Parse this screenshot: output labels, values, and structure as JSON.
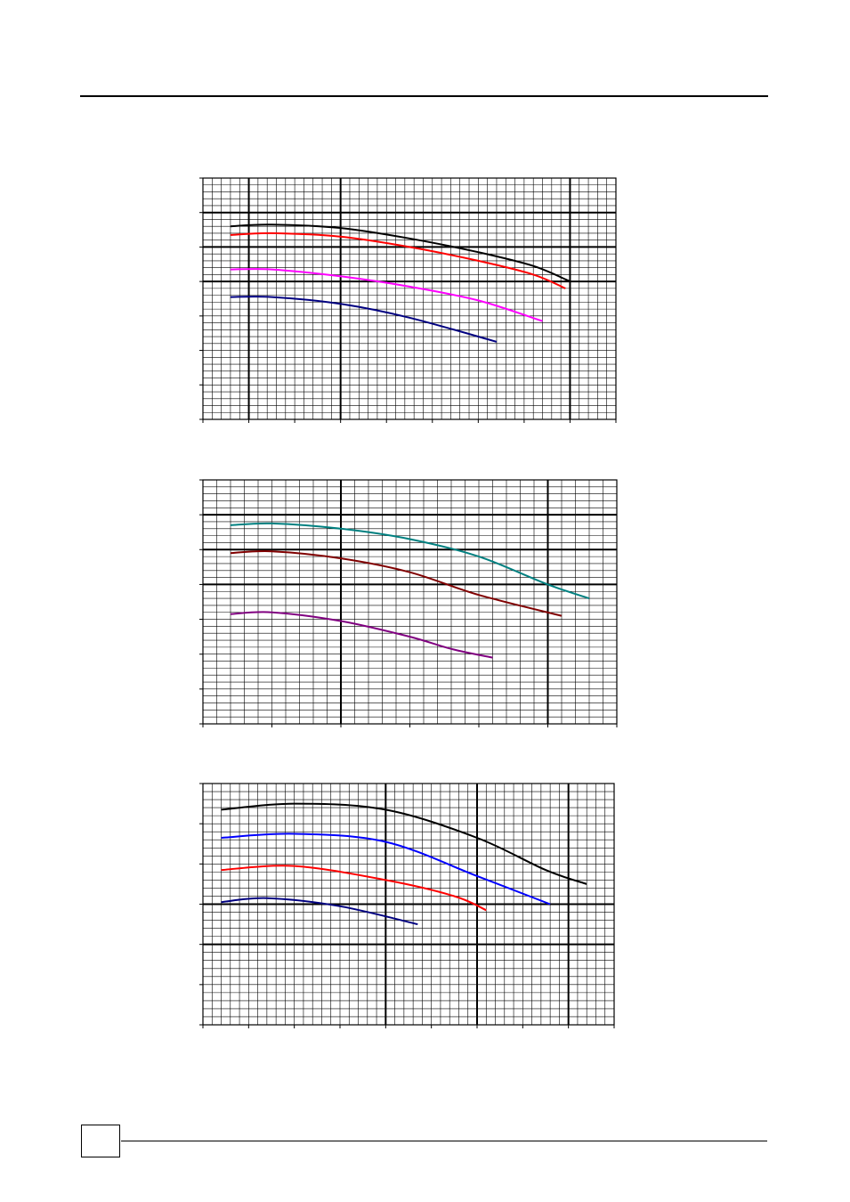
{
  "page": {
    "page_number": ""
  },
  "chart_data": [
    {
      "type": "line",
      "title": "",
      "xlabel": "",
      "ylabel": "",
      "xlim": [
        0,
        9
      ],
      "ylim": [
        0,
        7
      ],
      "major_x": [
        1,
        3,
        8
      ],
      "major_y": [
        6,
        5,
        4
      ],
      "minor_x": 0.2,
      "minor_y": 0.2,
      "tick_x": 1,
      "tick_y": 1,
      "grid": true,
      "series": [
        {
          "color": "#000000",
          "points": [
            [
              0.6,
              5.6
            ],
            [
              1.5,
              5.65
            ],
            [
              3,
              5.55
            ],
            [
              4.5,
              5.25
            ],
            [
              6,
              4.85
            ],
            [
              7.2,
              4.45
            ],
            [
              8,
              4.0
            ]
          ]
        },
        {
          "color": "#ff0000",
          "points": [
            [
              0.6,
              5.35
            ],
            [
              1.5,
              5.4
            ],
            [
              3,
              5.3
            ],
            [
              4.5,
              5.0
            ],
            [
              6,
              4.6
            ],
            [
              7.2,
              4.2
            ],
            [
              7.9,
              3.8
            ]
          ]
        },
        {
          "color": "#ff00ff",
          "points": [
            [
              0.6,
              4.35
            ],
            [
              1.5,
              4.35
            ],
            [
              3,
              4.15
            ],
            [
              4.5,
              3.85
            ],
            [
              6,
              3.45
            ],
            [
              7.4,
              2.85
            ]
          ]
        },
        {
          "color": "#000080",
          "points": [
            [
              0.6,
              3.55
            ],
            [
              1.5,
              3.55
            ],
            [
              3,
              3.35
            ],
            [
              4.5,
              2.95
            ],
            [
              6.4,
              2.25
            ]
          ]
        }
      ]
    },
    {
      "type": "line",
      "title": "",
      "xlabel": "",
      "ylabel": "",
      "xlim": [
        0,
        6
      ],
      "ylim": [
        0,
        7
      ],
      "major_x": [
        2,
        5
      ],
      "major_y": [
        6,
        5,
        4
      ],
      "minor_x": 0.2,
      "minor_y": 0.2,
      "tick_x": 1,
      "tick_y": 1,
      "grid": true,
      "series": [
        {
          "color": "#008080",
          "points": [
            [
              0.4,
              5.7
            ],
            [
              1,
              5.75
            ],
            [
              2,
              5.6
            ],
            [
              3,
              5.3
            ],
            [
              4,
              4.8
            ],
            [
              5,
              4.0
            ],
            [
              5.6,
              3.6
            ]
          ]
        },
        {
          "color": "#800000",
          "points": [
            [
              0.4,
              4.9
            ],
            [
              1,
              4.95
            ],
            [
              2,
              4.75
            ],
            [
              3,
              4.35
            ],
            [
              4,
              3.7
            ],
            [
              5.2,
              3.1
            ]
          ]
        },
        {
          "color": "#800080",
          "points": [
            [
              0.4,
              3.15
            ],
            [
              1,
              3.2
            ],
            [
              2,
              2.95
            ],
            [
              3,
              2.5
            ],
            [
              3.6,
              2.15
            ],
            [
              4.2,
              1.9
            ]
          ]
        }
      ]
    },
    {
      "type": "line",
      "title": "",
      "xlabel": "",
      "ylabel": "",
      "xlim": [
        0,
        9
      ],
      "ylim": [
        0,
        6
      ],
      "major_x": [
        4,
        6,
        8
      ],
      "major_y": [
        3,
        2
      ],
      "minor_x": 0.2,
      "minor_y": 0.2,
      "tick_x": 1,
      "tick_y": 1,
      "grid": true,
      "series": [
        {
          "color": "#000000",
          "points": [
            [
              0.4,
              5.35
            ],
            [
              2,
              5.5
            ],
            [
              4,
              5.35
            ],
            [
              6,
              4.65
            ],
            [
              7.5,
              3.85
            ],
            [
              8.4,
              3.5
            ]
          ]
        },
        {
          "color": "#0000ff",
          "points": [
            [
              0.4,
              4.65
            ],
            [
              2,
              4.75
            ],
            [
              4,
              4.55
            ],
            [
              6,
              3.7
            ],
            [
              7.6,
              3.0
            ]
          ]
        },
        {
          "color": "#ff0000",
          "points": [
            [
              0.4,
              3.85
            ],
            [
              2,
              3.95
            ],
            [
              4,
              3.6
            ],
            [
              5.5,
              3.2
            ],
            [
              6.2,
              2.85
            ]
          ]
        },
        {
          "color": "#000080",
          "points": [
            [
              0.4,
              3.05
            ],
            [
              1.4,
              3.15
            ],
            [
              3,
              2.95
            ],
            [
              4.7,
              2.5
            ]
          ]
        }
      ]
    }
  ]
}
